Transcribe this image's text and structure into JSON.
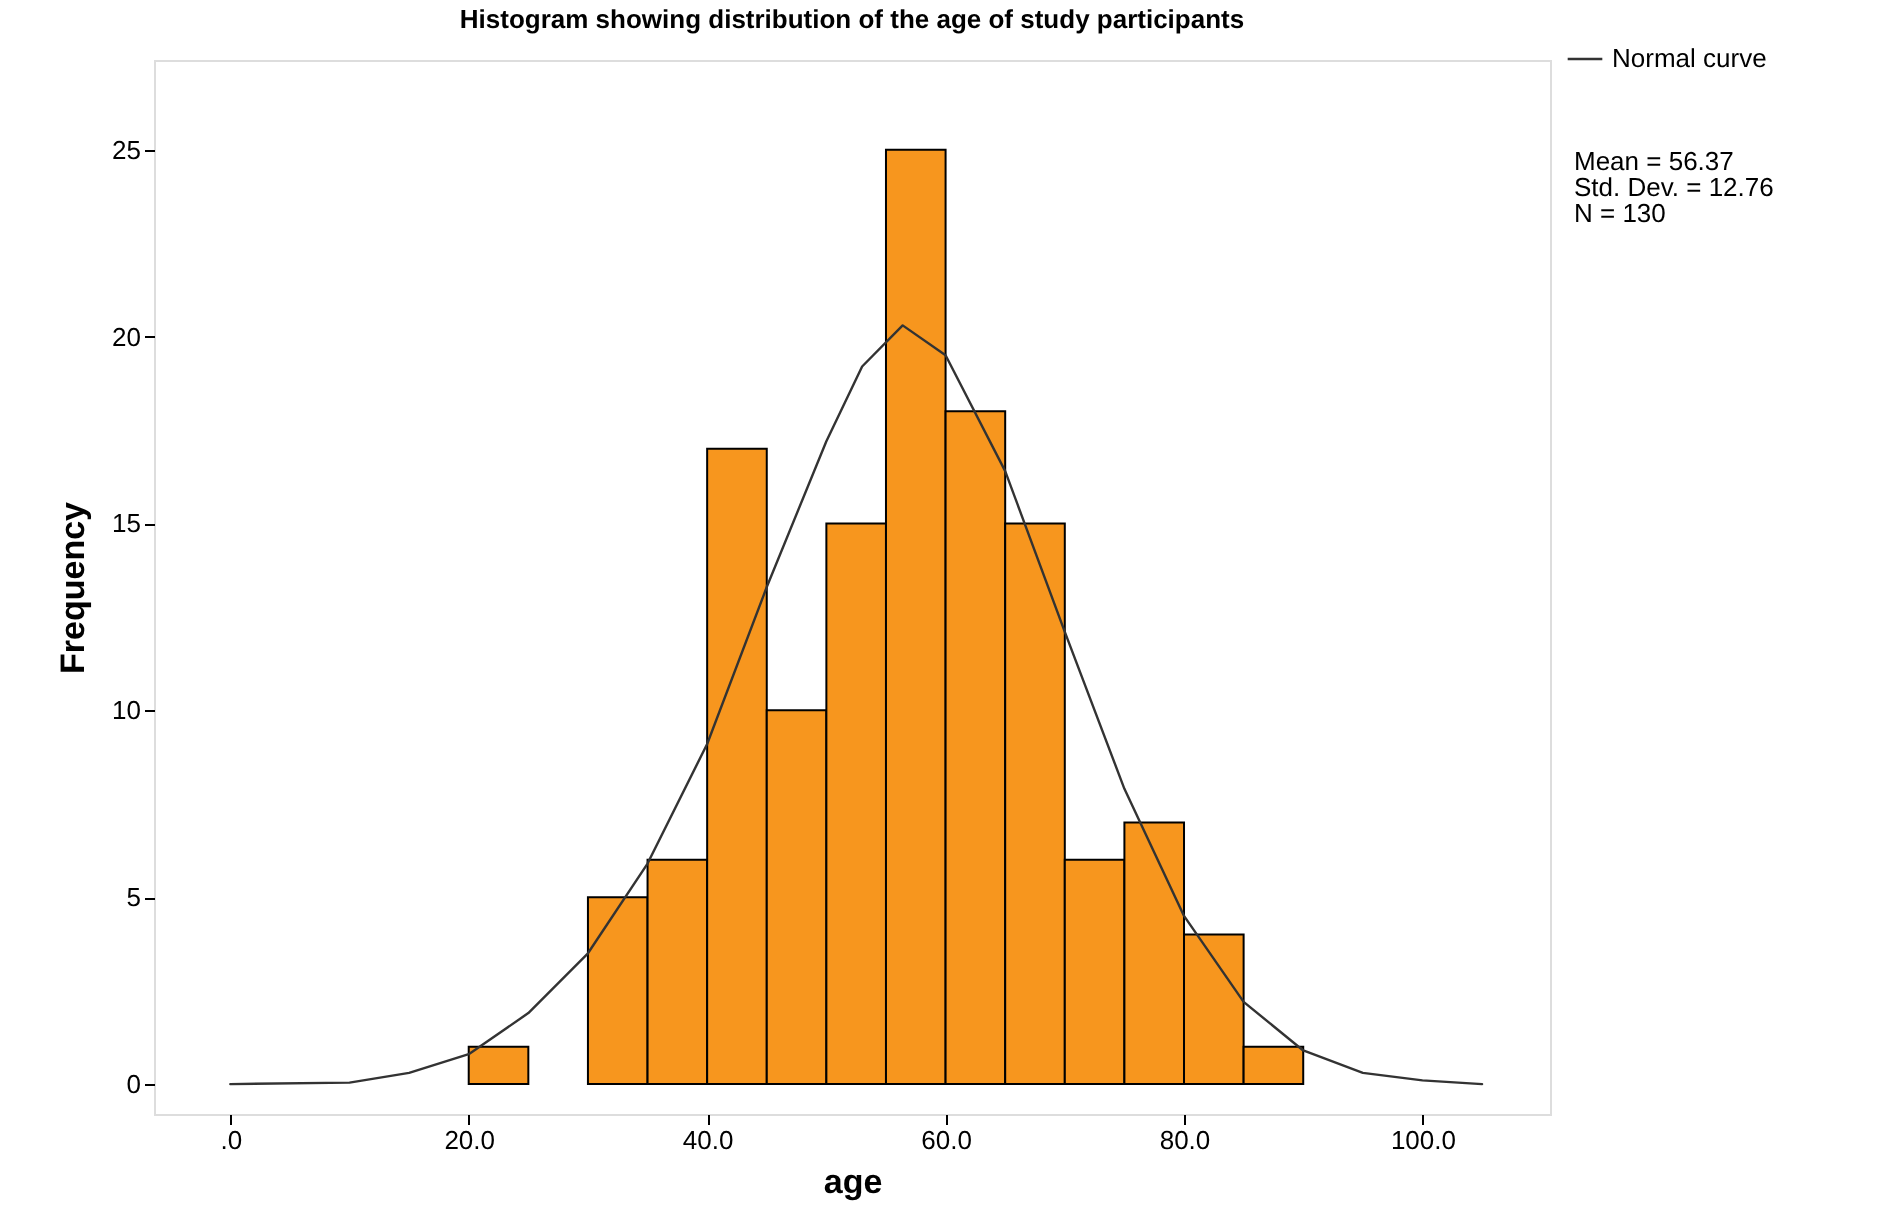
{
  "chart_data": {
    "type": "histogram",
    "title": "Histogram showing distribution of the age of study participants",
    "xlabel": "age",
    "ylabel": "Frequency",
    "bins": [
      20,
      25,
      30,
      35,
      40,
      45,
      50,
      55,
      60,
      65,
      70,
      75,
      80,
      85,
      90
    ],
    "values": [
      1,
      0,
      5,
      6,
      17,
      10,
      15,
      25,
      18,
      15,
      6,
      7,
      4,
      1
    ],
    "colors": [
      "#f7961e",
      "#f7961e",
      "#f7961e",
      "#f7961e",
      "#f7961e",
      "#f7961e",
      "#f7961e",
      "#f7961e",
      "#f7961e",
      "#f7961e",
      "#f7961e",
      "#f7961e",
      "#f7961e",
      "#f7961e"
    ],
    "series": [
      {
        "name": "Normal curve",
        "type": "line",
        "color": "#333333",
        "x": [
          0,
          10,
          15,
          20,
          25,
          30,
          35,
          40,
          45,
          50,
          53,
          56.4,
          60,
          65,
          70,
          75,
          80,
          85,
          90,
          95,
          100,
          105
        ],
        "values": [
          0.0,
          0.04,
          0.3,
          0.8,
          1.9,
          3.5,
          5.9,
          9.1,
          13.3,
          17.2,
          19.2,
          20.3,
          19.5,
          16.4,
          12.1,
          7.9,
          4.5,
          2.2,
          0.9,
          0.3,
          0.1,
          0.0
        ]
      }
    ],
    "xlim": [
      -6.4,
      110.7
    ],
    "ylim": [
      -0.8,
      27.4
    ],
    "xticks": [
      {
        "value": 0,
        "label": ".0"
      },
      {
        "value": 20,
        "label": "20.0"
      },
      {
        "value": 40,
        "label": "40.0"
      },
      {
        "value": 60,
        "label": "60.0"
      },
      {
        "value": 80,
        "label": "80.0"
      },
      {
        "value": 100,
        "label": "100.0"
      }
    ],
    "yticks": [
      0,
      5,
      10,
      15,
      20,
      25
    ],
    "annotations": [
      "Mean = 56.37",
      "Std. Dev. = 12.76",
      "N = 130"
    ],
    "legend": "top right",
    "grid": false,
    "marker": "none",
    "line_style": "solid"
  }
}
